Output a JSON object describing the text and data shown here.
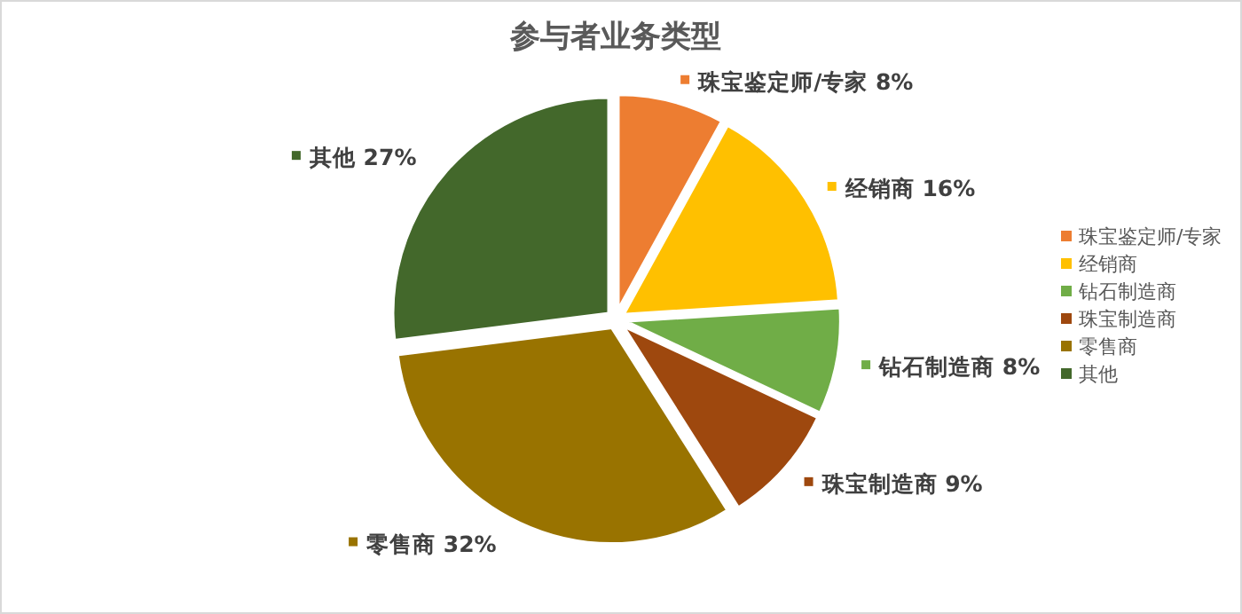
{
  "chart_data": {
    "type": "pie",
    "title": "参与者业务类型",
    "categories": [
      "珠宝鉴定师/专家",
      "经销商",
      "钻石制造商",
      "珠宝制造商",
      "零售商",
      "其他"
    ],
    "values": [
      8,
      16,
      8,
      9,
      32,
      27
    ],
    "colors": [
      "#ed7d31",
      "#ffc000",
      "#70ad47",
      "#9e480e",
      "#997300",
      "#43682b"
    ],
    "value_labels": [
      "8%",
      "16%",
      "8%",
      "9%",
      "32%",
      "27%"
    ],
    "legend": "right"
  }
}
